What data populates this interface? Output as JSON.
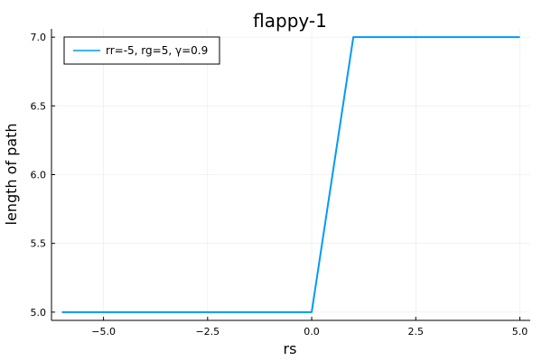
{
  "chart_data": {
    "type": "line",
    "title": "flappy-1",
    "xlabel": "rs",
    "ylabel": "length of path",
    "xlim": [
      -6.25,
      5.25
    ],
    "ylim": [
      4.94,
      7.06
    ],
    "xticks": [
      -5.0,
      -2.5,
      0.0,
      2.5,
      5.0
    ],
    "xtick_labels": [
      "−5.0",
      "−2.5",
      "0.0",
      "2.5",
      "5.0"
    ],
    "yticks": [
      5.0,
      5.5,
      6.0,
      6.5,
      7.0
    ],
    "ytick_labels": [
      "5.0",
      "5.5",
      "6.0",
      "6.5",
      "7.0"
    ],
    "grid": true,
    "legend_position": "top-left",
    "series": [
      {
        "name": "rr=-5, rg=5, γ=0.9",
        "color": "#009af9",
        "x": [
          -6,
          -5,
          -4,
          -3,
          -2,
          -1,
          0,
          1,
          2,
          3,
          4,
          5
        ],
        "y": [
          5,
          5,
          5,
          5,
          5,
          5,
          5,
          7,
          7,
          7,
          7,
          7
        ]
      }
    ]
  }
}
